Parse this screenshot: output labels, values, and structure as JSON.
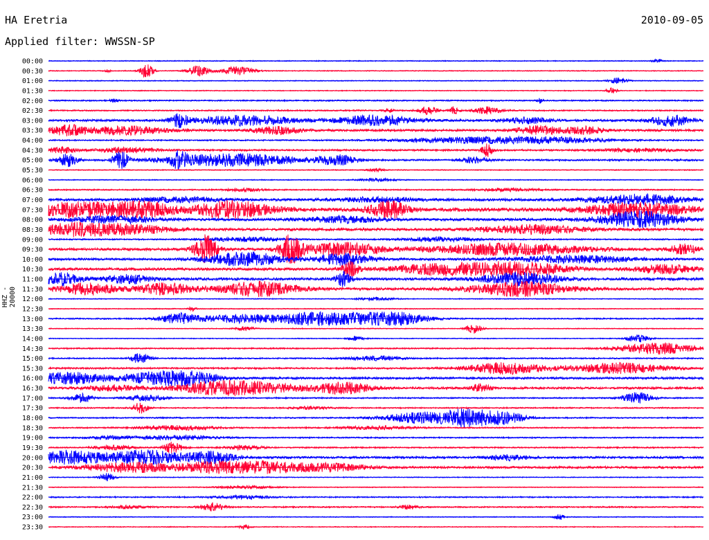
{
  "header": {
    "station": "HA Eretria",
    "date": "2010-09-05",
    "filter": "Applied filter: WWSSN-SP"
  },
  "chart_data": {
    "type": "line",
    "title": "HA Eretria",
    "ylabel": "HHZ - 20000",
    "row_labels": [
      "00:00",
      "00:30",
      "01:00",
      "01:30",
      "02:00",
      "02:30",
      "03:00",
      "03:30",
      "04:00",
      "04:30",
      "05:00",
      "05:30",
      "06:00",
      "06:30",
      "07:00",
      "07:30",
      "08:00",
      "08:30",
      "09:00",
      "09:30",
      "10:00",
      "10:30",
      "11:00",
      "11:30",
      "12:00",
      "12:30",
      "13:00",
      "13:30",
      "14:00",
      "14:30",
      "15:00",
      "15:30",
      "16:00",
      "16:30",
      "17:00",
      "17:30",
      "18:00",
      "18:30",
      "19:00",
      "19:30",
      "20:00",
      "20:30",
      "21:00",
      "21:30",
      "22:00",
      "22:30",
      "23:00",
      "23:30"
    ],
    "row_colors": [
      "#0000ff",
      "#ff0033"
    ],
    "rows": [
      {
        "label": "00:00",
        "noise": 1,
        "bursts": [
          [
            0.93,
            3,
            5
          ]
        ]
      },
      {
        "label": "00:30",
        "noise": 1,
        "bursts": [
          [
            0.15,
            10,
            7
          ],
          [
            0.23,
            7,
            12
          ],
          [
            0.29,
            6,
            18
          ],
          [
            0.09,
            2,
            3
          ]
        ]
      },
      {
        "label": "01:00",
        "noise": 1,
        "bursts": [
          [
            0.87,
            4,
            10
          ]
        ]
      },
      {
        "label": "01:30",
        "noise": 1,
        "bursts": [
          [
            0.86,
            4,
            6
          ]
        ]
      },
      {
        "label": "02:00",
        "noise": 1.5,
        "bursts": [
          [
            0.75,
            4,
            3
          ],
          [
            0.1,
            2,
            5
          ]
        ]
      },
      {
        "label": "02:30",
        "noise": 1.5,
        "bursts": [
          [
            0.58,
            6,
            10
          ],
          [
            0.62,
            5,
            5
          ],
          [
            0.67,
            5,
            14
          ],
          [
            0.52,
            3,
            5
          ]
        ]
      },
      {
        "label": "03:00",
        "noise": 2.5,
        "bursts": [
          [
            0.2,
            9,
            10
          ],
          [
            0.3,
            7,
            50
          ],
          [
            0.5,
            7,
            40
          ],
          [
            0.95,
            8,
            20
          ],
          [
            0.73,
            4,
            25
          ]
        ]
      },
      {
        "label": "03:30",
        "noise": 2.5,
        "bursts": [
          [
            0.03,
            7,
            20
          ],
          [
            0.12,
            6,
            40
          ],
          [
            0.35,
            5,
            25
          ],
          [
            0.75,
            6,
            25
          ],
          [
            0.82,
            5,
            20
          ]
        ]
      },
      {
        "label": "04:00",
        "noise": 1.5,
        "bursts": [
          [
            0.65,
            4,
            80
          ],
          [
            0.78,
            3,
            60
          ]
        ]
      },
      {
        "label": "04:30",
        "noise": 2,
        "bursts": [
          [
            0.02,
            4,
            15
          ],
          [
            0.12,
            4,
            30
          ],
          [
            0.67,
            9,
            6
          ],
          [
            0.9,
            2,
            40
          ]
        ]
      },
      {
        "label": "05:00",
        "noise": 2,
        "bursts": [
          [
            0.03,
            9,
            10
          ],
          [
            0.11,
            12,
            8
          ],
          [
            0.2,
            10,
            8
          ],
          [
            0.28,
            9,
            70
          ],
          [
            0.44,
            7,
            20
          ],
          [
            0.65,
            4,
            15
          ]
        ]
      },
      {
        "label": "05:30",
        "noise": 1,
        "bursts": [
          [
            0.5,
            2,
            10
          ]
        ]
      },
      {
        "label": "06:00",
        "noise": 1,
        "bursts": [
          [
            0.5,
            2,
            20
          ]
        ]
      },
      {
        "label": "06:30",
        "noise": 1.5,
        "bursts": [
          [
            0.7,
            2,
            30
          ],
          [
            0.3,
            2,
            20
          ]
        ]
      },
      {
        "label": "07:00",
        "noise": 3,
        "bursts": [
          [
            0.9,
            7,
            50
          ],
          [
            0.5,
            3,
            40
          ],
          [
            0.2,
            3,
            40
          ]
        ]
      },
      {
        "label": "07:30",
        "noise": 4,
        "bursts": [
          [
            0.05,
            10,
            60
          ],
          [
            0.15,
            8,
            30
          ],
          [
            0.28,
            12,
            40
          ],
          [
            0.52,
            12,
            20
          ],
          [
            0.9,
            10,
            50
          ]
        ]
      },
      {
        "label": "08:00",
        "noise": 3,
        "bursts": [
          [
            0.1,
            5,
            40
          ],
          [
            0.45,
            4,
            40
          ],
          [
            0.9,
            12,
            40
          ]
        ]
      },
      {
        "label": "08:30",
        "noise": 3,
        "bursts": [
          [
            0.04,
            9,
            40
          ],
          [
            0.13,
            6,
            40
          ],
          [
            0.74,
            6,
            50
          ]
        ]
      },
      {
        "label": "09:00",
        "noise": 1.5,
        "bursts": [
          [
            0.3,
            3,
            40
          ],
          [
            0.6,
            3,
            40
          ]
        ]
      },
      {
        "label": "09:30",
        "noise": 3,
        "bursts": [
          [
            0.24,
            20,
            12
          ],
          [
            0.37,
            20,
            12
          ],
          [
            0.45,
            9,
            40
          ],
          [
            0.7,
            8,
            80
          ],
          [
            0.97,
            7,
            15
          ]
        ]
      },
      {
        "label": "10:00",
        "noise": 2.5,
        "bursts": [
          [
            0.3,
            10,
            40
          ],
          [
            0.45,
            8,
            30
          ],
          [
            0.8,
            5,
            60
          ]
        ]
      },
      {
        "label": "10:30",
        "noise": 3,
        "bursts": [
          [
            0.46,
            10,
            10
          ],
          [
            0.6,
            8,
            50
          ],
          [
            0.72,
            10,
            50
          ],
          [
            0.94,
            6,
            30
          ]
        ]
      },
      {
        "label": "11:00",
        "noise": 3,
        "bursts": [
          [
            0.02,
            9,
            20
          ],
          [
            0.12,
            6,
            25
          ],
          [
            0.45,
            10,
            8
          ],
          [
            0.72,
            9,
            40
          ]
        ]
      },
      {
        "label": "11:30",
        "noise": 3,
        "bursts": [
          [
            0.06,
            8,
            30
          ],
          [
            0.18,
            8,
            30
          ],
          [
            0.32,
            10,
            40
          ],
          [
            0.72,
            10,
            50
          ]
        ]
      },
      {
        "label": "12:00",
        "noise": 1,
        "bursts": [
          [
            0.5,
            2,
            20
          ]
        ]
      },
      {
        "label": "12:30",
        "noise": 1,
        "bursts": [
          [
            0.22,
            3,
            4
          ]
        ]
      },
      {
        "label": "13:00",
        "noise": 1.5,
        "bursts": [
          [
            0.2,
            7,
            20
          ],
          [
            0.3,
            6,
            50
          ],
          [
            0.4,
            6,
            25
          ],
          [
            0.47,
            8,
            50
          ],
          [
            0.54,
            6,
            30
          ]
        ]
      },
      {
        "label": "13:30",
        "noise": 1,
        "bursts": [
          [
            0.65,
            7,
            8
          ],
          [
            0.3,
            3,
            10
          ]
        ]
      },
      {
        "label": "14:00",
        "noise": 1,
        "bursts": [
          [
            0.47,
            3,
            8
          ],
          [
            0.9,
            5,
            12
          ]
        ]
      },
      {
        "label": "14:30",
        "noise": 1.5,
        "bursts": [
          [
            0.93,
            8,
            40
          ]
        ]
      },
      {
        "label": "15:00",
        "noise": 1.5,
        "bursts": [
          [
            0.14,
            7,
            10
          ],
          [
            0.5,
            3,
            30
          ]
        ]
      },
      {
        "label": "15:30",
        "noise": 2,
        "bursts": [
          [
            0.7,
            8,
            40
          ],
          [
            0.87,
            7,
            50
          ]
        ]
      },
      {
        "label": "16:00",
        "noise": 2.5,
        "bursts": [
          [
            0.03,
            8,
            40
          ],
          [
            0.17,
            8,
            40
          ],
          [
            0.22,
            6,
            30
          ]
        ]
      },
      {
        "label": "16:30",
        "noise": 2.5,
        "bursts": [
          [
            0.1,
            4,
            30
          ],
          [
            0.25,
            7,
            40
          ],
          [
            0.32,
            7,
            50
          ],
          [
            0.45,
            8,
            30
          ],
          [
            0.66,
            6,
            10
          ]
        ]
      },
      {
        "label": "17:00",
        "noise": 1.5,
        "bursts": [
          [
            0.05,
            6,
            12
          ],
          [
            0.15,
            4,
            20
          ],
          [
            0.9,
            8,
            15
          ]
        ]
      },
      {
        "label": "17:30",
        "noise": 1.5,
        "bursts": [
          [
            0.14,
            8,
            8
          ],
          [
            0.4,
            2,
            20
          ]
        ]
      },
      {
        "label": "18:00",
        "noise": 1.5,
        "bursts": [
          [
            0.57,
            8,
            40
          ],
          [
            0.63,
            8,
            20
          ],
          [
            0.66,
            8,
            20
          ],
          [
            0.7,
            8,
            20
          ]
        ]
      },
      {
        "label": "18:30",
        "noise": 1.5,
        "bursts": [
          [
            0.2,
            3,
            40
          ],
          [
            0.5,
            2,
            40
          ]
        ]
      },
      {
        "label": "19:00",
        "noise": 1.5,
        "bursts": [
          [
            0.2,
            3,
            40
          ],
          [
            0.1,
            2,
            30
          ]
        ]
      },
      {
        "label": "19:30",
        "noise": 1.5,
        "bursts": [
          [
            0.19,
            8,
            10
          ],
          [
            0.1,
            3,
            20
          ],
          [
            0.3,
            3,
            20
          ]
        ]
      },
      {
        "label": "20:00",
        "noise": 2.5,
        "bursts": [
          [
            0.03,
            9,
            40
          ],
          [
            0.15,
            10,
            40
          ],
          [
            0.25,
            8,
            25
          ],
          [
            0.7,
            4,
            20
          ]
        ]
      },
      {
        "label": "20:30",
        "noise": 2.5,
        "bursts": [
          [
            0.13,
            7,
            50
          ],
          [
            0.25,
            7,
            30
          ],
          [
            0.33,
            8,
            40
          ],
          [
            0.43,
            5,
            40
          ]
        ]
      },
      {
        "label": "21:00",
        "noise": 1,
        "bursts": [
          [
            0.09,
            6,
            8
          ]
        ]
      },
      {
        "label": "21:30",
        "noise": 1,
        "bursts": [
          [
            0.3,
            2,
            30
          ]
        ]
      },
      {
        "label": "22:00",
        "noise": 1.5,
        "bursts": [
          [
            0.3,
            2,
            30
          ]
        ]
      },
      {
        "label": "22:30",
        "noise": 1.5,
        "bursts": [
          [
            0.25,
            6,
            12
          ],
          [
            0.12,
            2,
            20
          ],
          [
            0.55,
            3,
            10
          ]
        ]
      },
      {
        "label": "23:00",
        "noise": 1,
        "bursts": [
          [
            0.78,
            4,
            5
          ]
        ]
      },
      {
        "label": "23:30",
        "noise": 1,
        "bursts": [
          [
            0.3,
            3,
            6
          ]
        ]
      }
    ]
  }
}
